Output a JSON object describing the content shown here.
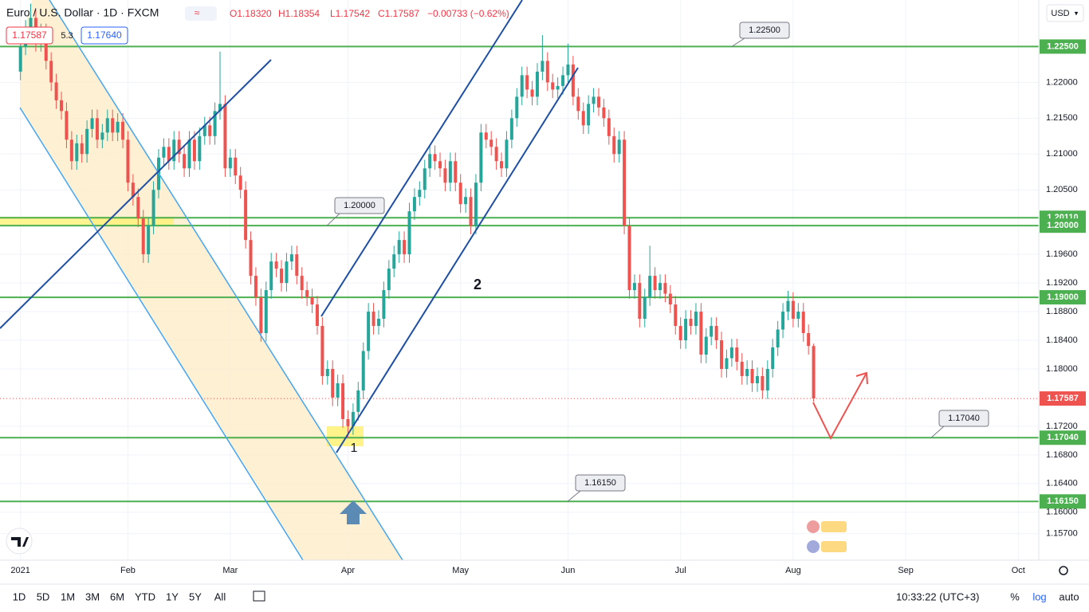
{
  "header": {
    "title": "Euro / U.S. Dollar · 1D · FXCM",
    "ohlc": [
      "O1.18320",
      "H1.18354",
      "L1.17542",
      "C1.17587"
    ],
    "change": "−0.00733 (−0.62%)",
    "bid": "1.17587",
    "spread": "5.3",
    "ask": "1.17640",
    "currency": "USD"
  },
  "toolbar": {
    "ranges": [
      "1D",
      "5D",
      "1M",
      "3M",
      "6M",
      "YTD",
      "1Y",
      "5Y",
      "All"
    ],
    "time": "10:33:22 (UTC+3)",
    "options": [
      "%",
      "log",
      "auto"
    ]
  },
  "annotations": [
    "1",
    "2"
  ],
  "chart_data": {
    "type": "candlestick",
    "colors": {
      "up": "#26a69a",
      "down": "#ef5350",
      "level": "#4caf50"
    },
    "grid": true,
    "ylim": [
      1.1533,
      1.2315
    ],
    "yticks": [
      {
        "value": 1.22,
        "label": "1.22000"
      },
      {
        "value": 1.215,
        "label": "1.21500"
      },
      {
        "value": 1.21,
        "label": "1.21000"
      },
      {
        "value": 1.205,
        "label": "1.20500"
      },
      {
        "value": 1.196,
        "label": "1.19600"
      },
      {
        "value": 1.192,
        "label": "1.19200"
      },
      {
        "value": 1.188,
        "label": "1.18800"
      },
      {
        "value": 1.184,
        "label": "1.18400"
      },
      {
        "value": 1.18,
        "label": "1.18000"
      },
      {
        "value": 1.172,
        "label": "1.17200"
      },
      {
        "value": 1.168,
        "label": "1.16800"
      },
      {
        "value": 1.164,
        "label": "1.16400"
      },
      {
        "value": 1.16,
        "label": "1.16000"
      },
      {
        "value": 1.157,
        "label": "1.15700"
      }
    ],
    "xlim": [
      -4,
      199
    ],
    "xticks": [
      {
        "value": 0,
        "label": "2021"
      },
      {
        "value": 21,
        "label": "Feb"
      },
      {
        "value": 41,
        "label": "Mar"
      },
      {
        "value": 64,
        "label": "Apr"
      },
      {
        "value": 86,
        "label": "May"
      },
      {
        "value": 107,
        "label": "Jun"
      },
      {
        "value": 129,
        "label": "Jul"
      },
      {
        "value": 151,
        "label": "Aug"
      },
      {
        "value": 173,
        "label": "Sep"
      },
      {
        "value": 195,
        "label": "Oct"
      }
    ],
    "levels": [
      {
        "value": 1.225,
        "label": "1.22500"
      },
      {
        "value": 1.2011,
        "label": "1.20110"
      },
      {
        "value": 1.2,
        "label": "1.20000"
      },
      {
        "value": 1.19,
        "label": "1.19000"
      },
      {
        "value": 1.1704,
        "label": "1.17040"
      },
      {
        "value": 1.1615,
        "label": "1.16150"
      }
    ],
    "last_price": {
      "value": 1.17587,
      "label": "1.17587"
    },
    "ohlc": [
      [
        1.2215,
        1.2262,
        1.2203,
        1.225
      ],
      [
        1.225,
        1.2287,
        1.2238,
        1.2275
      ],
      [
        1.2275,
        1.231,
        1.2263,
        1.229
      ],
      [
        1.229,
        1.2302,
        1.2243,
        1.2255
      ],
      [
        1.2255,
        1.2282,
        1.2243,
        1.227
      ],
      [
        1.227,
        1.2282,
        1.2218,
        1.223
      ],
      [
        1.223,
        1.2242,
        1.2188,
        1.22
      ],
      [
        1.22,
        1.2212,
        1.2163,
        1.2175
      ],
      [
        1.2175,
        1.2187,
        1.2148,
        1.216
      ],
      [
        1.216,
        1.2172,
        1.2108,
        1.212
      ],
      [
        1.212,
        1.2132,
        1.2078,
        1.209
      ],
      [
        1.209,
        1.2127,
        1.2078,
        1.2115
      ],
      [
        1.2115,
        1.2127,
        1.2088,
        1.21
      ],
      [
        1.21,
        1.2147,
        1.2088,
        1.2135
      ],
      [
        1.2135,
        1.2162,
        1.2123,
        1.215
      ],
      [
        1.215,
        1.2162,
        1.2108,
        1.212
      ],
      [
        1.212,
        1.2142,
        1.2108,
        1.213
      ],
      [
        1.213,
        1.2162,
        1.2118,
        1.215
      ],
      [
        1.215,
        1.2162,
        1.2118,
        1.213
      ],
      [
        1.213,
        1.2157,
        1.2118,
        1.2145
      ],
      [
        1.2145,
        1.2157,
        1.2108,
        1.212
      ],
      [
        1.212,
        1.2132,
        1.2048,
        1.206
      ],
      [
        1.206,
        1.2072,
        1.2028,
        1.204
      ],
      [
        1.204,
        1.2052,
        1.1998,
        1.201
      ],
      [
        1.201,
        1.2022,
        1.1948,
        1.196
      ],
      [
        1.196,
        1.2012,
        1.1948,
        1.2
      ],
      [
        1.2,
        1.2062,
        1.1988,
        1.205
      ],
      [
        1.205,
        1.2107,
        1.2038,
        1.2095
      ],
      [
        1.2095,
        1.2122,
        1.2083,
        1.211
      ],
      [
        1.211,
        1.2122,
        1.2078,
        1.209
      ],
      [
        1.209,
        1.2132,
        1.2078,
        1.212
      ],
      [
        1.212,
        1.2132,
        1.2088,
        1.21
      ],
      [
        1.21,
        1.2112,
        1.2068,
        1.208
      ],
      [
        1.208,
        1.2132,
        1.2068,
        1.212
      ],
      [
        1.212,
        1.2132,
        1.2078,
        1.209
      ],
      [
        1.209,
        1.2137,
        1.2078,
        1.2125
      ],
      [
        1.2125,
        1.2152,
        1.2113,
        1.214
      ],
      [
        1.214,
        1.2152,
        1.2113,
        1.2125
      ],
      [
        1.2125,
        1.2172,
        1.2113,
        1.216
      ],
      [
        1.216,
        1.2243,
        1.2148,
        1.217
      ],
      [
        1.217,
        1.2182,
        1.2068,
        1.208
      ],
      [
        1.208,
        1.2107,
        1.2068,
        1.2095
      ],
      [
        1.2095,
        1.2107,
        1.2058,
        1.207
      ],
      [
        1.207,
        1.2082,
        1.2038,
        1.205
      ],
      [
        1.205,
        1.2062,
        1.1968,
        1.198
      ],
      [
        1.198,
        1.1992,
        1.1918,
        1.193
      ],
      [
        1.193,
        1.1942,
        1.1888,
        1.19
      ],
      [
        1.19,
        1.1912,
        1.1838,
        1.185
      ],
      [
        1.185,
        1.1922,
        1.1838,
        1.191
      ],
      [
        1.191,
        1.1962,
        1.1898,
        1.195
      ],
      [
        1.195,
        1.1962,
        1.1928,
        1.194
      ],
      [
        1.194,
        1.1952,
        1.1908,
        1.192
      ],
      [
        1.192,
        1.1962,
        1.1908,
        1.195
      ],
      [
        1.195,
        1.1972,
        1.1938,
        1.196
      ],
      [
        1.196,
        1.1972,
        1.1918,
        1.193
      ],
      [
        1.193,
        1.1942,
        1.1898,
        1.191
      ],
      [
        1.191,
        1.1922,
        1.1888,
        1.19
      ],
      [
        1.19,
        1.1912,
        1.1878,
        1.189
      ],
      [
        1.189,
        1.1902,
        1.1848,
        1.186
      ],
      [
        1.186,
        1.1872,
        1.1778,
        1.179
      ],
      [
        1.179,
        1.1812,
        1.1778,
        1.18
      ],
      [
        1.18,
        1.1812,
        1.1748,
        1.176
      ],
      [
        1.176,
        1.1792,
        1.1748,
        1.178
      ],
      [
        1.178,
        1.1792,
        1.1718,
        1.173
      ],
      [
        1.173,
        1.1742,
        1.1704,
        1.172
      ],
      [
        1.172,
        1.1752,
        1.1708,
        1.174
      ],
      [
        1.174,
        1.1782,
        1.1728,
        1.177
      ],
      [
        1.177,
        1.1837,
        1.1758,
        1.1825
      ],
      [
        1.1825,
        1.1892,
        1.1813,
        1.188
      ],
      [
        1.188,
        1.1892,
        1.1848,
        1.186
      ],
      [
        1.186,
        1.1882,
        1.1848,
        1.187
      ],
      [
        1.187,
        1.1922,
        1.1858,
        1.191
      ],
      [
        1.191,
        1.1952,
        1.1898,
        1.194
      ],
      [
        1.194,
        1.1972,
        1.1928,
        1.196
      ],
      [
        1.196,
        1.1992,
        1.1948,
        1.198
      ],
      [
        1.198,
        1.1992,
        1.1948,
        1.196
      ],
      [
        1.196,
        1.2032,
        1.1948,
        1.202
      ],
      [
        1.202,
        1.2052,
        1.2008,
        1.204
      ],
      [
        1.204,
        1.2062,
        1.2028,
        1.205
      ],
      [
        1.205,
        1.2092,
        1.2038,
        1.208
      ],
      [
        1.208,
        1.2112,
        1.2068,
        1.21
      ],
      [
        1.21,
        1.2112,
        1.2078,
        1.209
      ],
      [
        1.209,
        1.2102,
        1.2068,
        1.208
      ],
      [
        1.208,
        1.2092,
        1.2048,
        1.206
      ],
      [
        1.206,
        1.2102,
        1.2048,
        1.209
      ],
      [
        1.209,
        1.2102,
        1.2048,
        1.206
      ],
      [
        1.206,
        1.2072,
        1.2018,
        1.203
      ],
      [
        1.203,
        1.2052,
        1.2018,
        1.204
      ],
      [
        1.204,
        1.2052,
        1.1988,
        1.2
      ],
      [
        1.2,
        1.2072,
        1.1988,
        1.206
      ],
      [
        1.206,
        1.2142,
        1.2048,
        1.213
      ],
      [
        1.213,
        1.2142,
        1.2108,
        1.212
      ],
      [
        1.212,
        1.2132,
        1.2098,
        1.211
      ],
      [
        1.211,
        1.2122,
        1.2078,
        1.209
      ],
      [
        1.209,
        1.2102,
        1.2068,
        1.208
      ],
      [
        1.208,
        1.2132,
        1.2068,
        1.212
      ],
      [
        1.212,
        1.2162,
        1.2108,
        1.215
      ],
      [
        1.215,
        1.2192,
        1.2138,
        1.218
      ],
      [
        1.218,
        1.2222,
        1.2168,
        1.221
      ],
      [
        1.221,
        1.2222,
        1.2178,
        1.219
      ],
      [
        1.219,
        1.2202,
        1.2168,
        1.218
      ],
      [
        1.218,
        1.2227,
        1.2168,
        1.2215
      ],
      [
        1.2215,
        1.2266,
        1.2203,
        1.223
      ],
      [
        1.223,
        1.2242,
        1.2188,
        1.22
      ],
      [
        1.22,
        1.2212,
        1.2178,
        1.219
      ],
      [
        1.219,
        1.2207,
        1.2178,
        1.2195
      ],
      [
        1.2195,
        1.2222,
        1.2183,
        1.221
      ],
      [
        1.221,
        1.2254,
        1.2198,
        1.2225
      ],
      [
        1.2225,
        1.2237,
        1.2168,
        1.218
      ],
      [
        1.218,
        1.2192,
        1.2148,
        1.216
      ],
      [
        1.216,
        1.2172,
        1.2128,
        1.214
      ],
      [
        1.214,
        1.2182,
        1.2128,
        1.217
      ],
      [
        1.217,
        1.2192,
        1.2158,
        1.218
      ],
      [
        1.218,
        1.2192,
        1.2153,
        1.2165
      ],
      [
        1.2165,
        1.2177,
        1.2138,
        1.215
      ],
      [
        1.215,
        1.2162,
        1.2113,
        1.2125
      ],
      [
        1.2125,
        1.2137,
        1.2088,
        1.21
      ],
      [
        1.21,
        1.2132,
        1.2088,
        1.212
      ],
      [
        1.212,
        1.2132,
        1.1988,
        1.2
      ],
      [
        1.2,
        1.2012,
        1.1898,
        1.191
      ],
      [
        1.191,
        1.1932,
        1.1898,
        1.192
      ],
      [
        1.192,
        1.1932,
        1.1858,
        1.187
      ],
      [
        1.187,
        1.1912,
        1.1858,
        1.19
      ],
      [
        1.19,
        1.1972,
        1.1888,
        1.193
      ],
      [
        1.193,
        1.1942,
        1.1898,
        1.191
      ],
      [
        1.191,
        1.1932,
        1.1898,
        1.192
      ],
      [
        1.192,
        1.1932,
        1.1893,
        1.1905
      ],
      [
        1.1905,
        1.1917,
        1.1878,
        1.189
      ],
      [
        1.189,
        1.1902,
        1.1848,
        1.186
      ],
      [
        1.186,
        1.1872,
        1.1828,
        1.184
      ],
      [
        1.184,
        1.1882,
        1.1828,
        1.187
      ],
      [
        1.187,
        1.1882,
        1.1848,
        1.186
      ],
      [
        1.186,
        1.1892,
        1.1848,
        1.188
      ],
      [
        1.188,
        1.1892,
        1.1808,
        1.182
      ],
      [
        1.182,
        1.1857,
        1.1808,
        1.1845
      ],
      [
        1.1845,
        1.1872,
        1.1833,
        1.186
      ],
      [
        1.186,
        1.1872,
        1.1828,
        1.184
      ],
      [
        1.184,
        1.1852,
        1.1788,
        1.18
      ],
      [
        1.18,
        1.1827,
        1.1788,
        1.1815
      ],
      [
        1.1815,
        1.1842,
        1.1803,
        1.183
      ],
      [
        1.183,
        1.1842,
        1.1798,
        1.181
      ],
      [
        1.181,
        1.1822,
        1.1778,
        1.179
      ],
      [
        1.179,
        1.1812,
        1.1778,
        1.18
      ],
      [
        1.18,
        1.1812,
        1.1768,
        1.178
      ],
      [
        1.178,
        1.1802,
        1.1768,
        1.179
      ],
      [
        1.179,
        1.1802,
        1.1758,
        1.177
      ],
      [
        1.177,
        1.1812,
        1.1758,
        1.18
      ],
      [
        1.18,
        1.1842,
        1.1788,
        1.183
      ],
      [
        1.183,
        1.1867,
        1.1818,
        1.1855
      ],
      [
        1.1855,
        1.1892,
        1.1843,
        1.188
      ],
      [
        1.188,
        1.1909,
        1.1868,
        1.1895
      ],
      [
        1.1895,
        1.1907,
        1.1858,
        1.187
      ],
      [
        1.187,
        1.1892,
        1.1858,
        1.188
      ],
      [
        1.188,
        1.1892,
        1.1838,
        1.185
      ],
      [
        1.185,
        1.1862,
        1.182,
        1.1832
      ],
      [
        1.1832,
        1.18354,
        1.17542,
        1.17587
      ]
    ]
  }
}
